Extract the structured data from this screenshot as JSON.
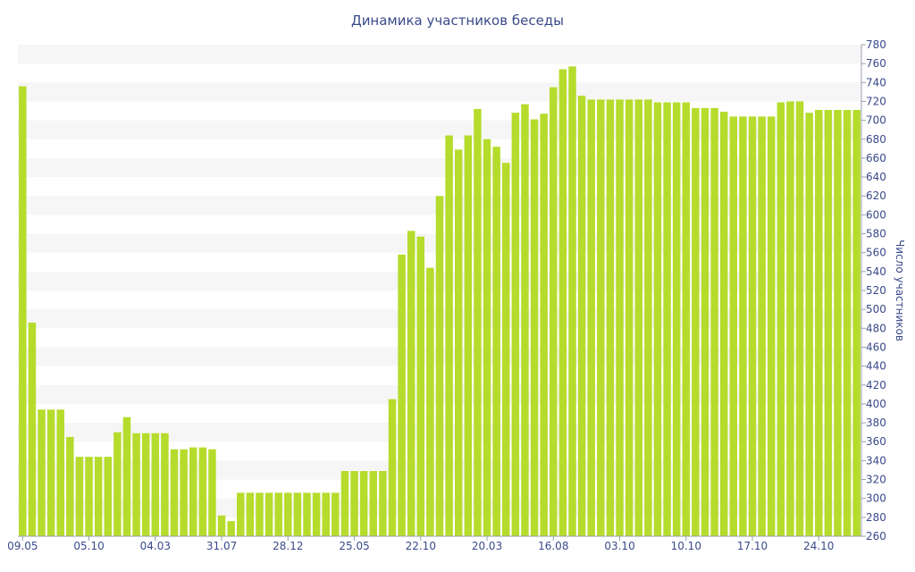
{
  "chart_data": {
    "type": "bar",
    "title": "Динамика участников беседы",
    "xlabel": "",
    "ylabel": "Число участников",
    "ylim": [
      260,
      780
    ],
    "ytick_step": 20,
    "x_tick_labels": [
      "09.05",
      "05.10",
      "04.03",
      "31.07",
      "28.12",
      "25.05",
      "22.10",
      "20.03",
      "16.08",
      "03.10",
      "10.10",
      "17.10",
      "24.10"
    ],
    "x_tick_positions": [
      0,
      7,
      14,
      21,
      28,
      35,
      42,
      49,
      56,
      63,
      70,
      77,
      84
    ],
    "bar_color": "#b5dc2c",
    "band_color": "#f6f6f6",
    "values": [
      736,
      486,
      394,
      394,
      394,
      365,
      344,
      344,
      344,
      344,
      370,
      386,
      369,
      369,
      369,
      369,
      352,
      352,
      354,
      354,
      352,
      282,
      276,
      306,
      306,
      306,
      306,
      306,
      306,
      306,
      306,
      306,
      306,
      306,
      329,
      329,
      329,
      329,
      329,
      405,
      558,
      583,
      577,
      544,
      620,
      684,
      669,
      684,
      712,
      680,
      672,
      655,
      708,
      717,
      701,
      707,
      735,
      754,
      757,
      726,
      722,
      722,
      722,
      722,
      722,
      722,
      722,
      719,
      719,
      719,
      719,
      713,
      713,
      713,
      709,
      704,
      704,
      704,
      704,
      704,
      719,
      720,
      720,
      708,
      711,
      711,
      711,
      711,
      711
    ]
  }
}
